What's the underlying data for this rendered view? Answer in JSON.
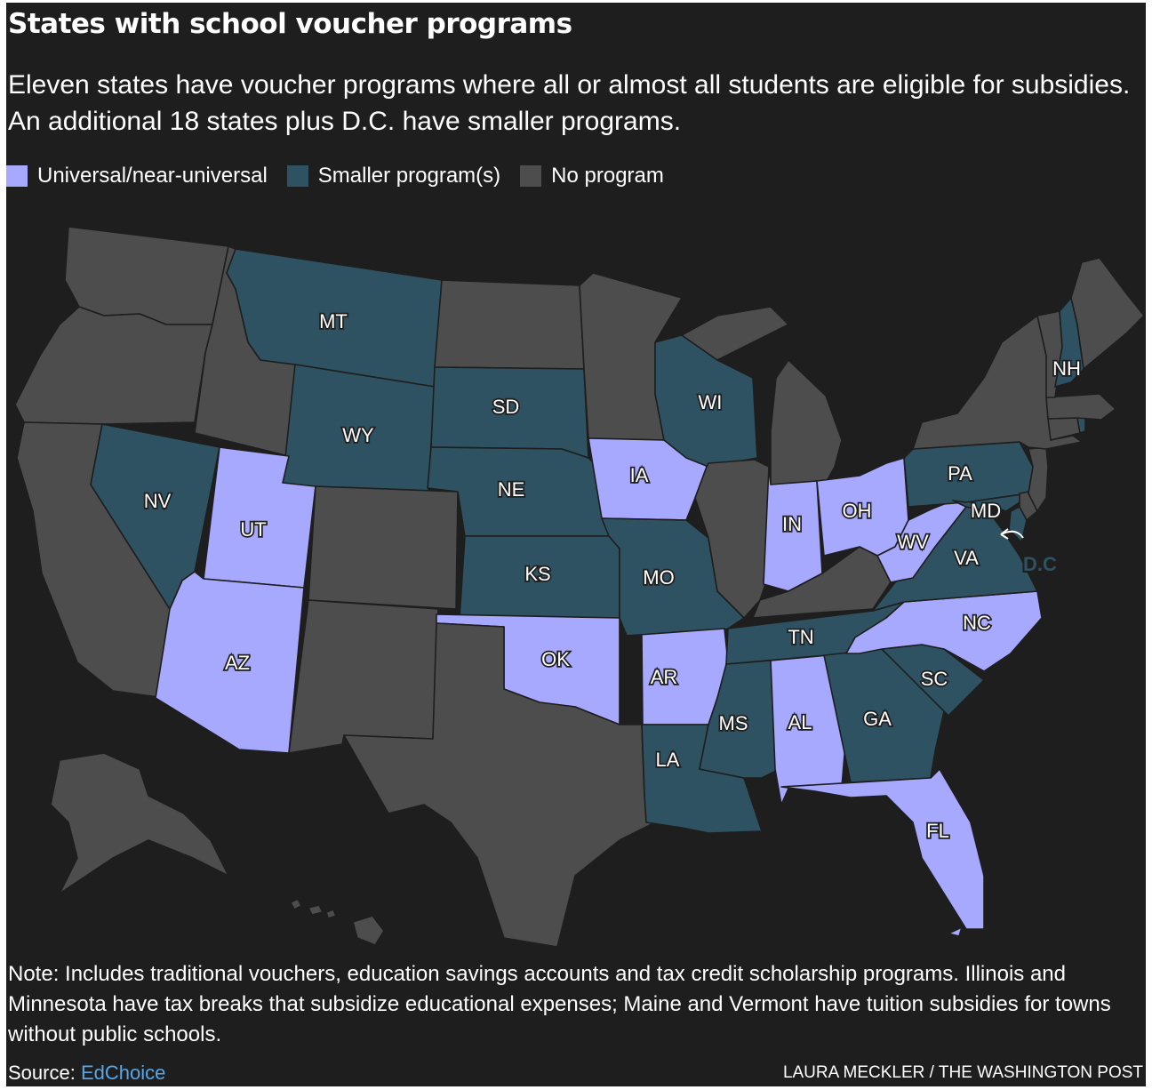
{
  "title": "States with school voucher programs",
  "subtitle": "Eleven states have voucher programs where all or almost all students are eligible for subsidies. An additional 18 states plus D.C. have smaller programs.",
  "legend": [
    {
      "label": "Universal/near-universal",
      "color": "#a7a8ff"
    },
    {
      "label": "Smaller program(s)",
      "color": "#2e5261"
    },
    {
      "label": "No program",
      "color": "#4d4d4d"
    }
  ],
  "colors": {
    "universal": "#a7a8ff",
    "smaller": "#2e5261",
    "none": "#4d4d4d",
    "background": "#1e1e1e",
    "link": "#57a7e8"
  },
  "map": {
    "states": [
      {
        "abbr": "WA",
        "category": "none",
        "show_label": false
      },
      {
        "abbr": "OR",
        "category": "none",
        "show_label": false
      },
      {
        "abbr": "CA",
        "category": "none",
        "show_label": false
      },
      {
        "abbr": "ID",
        "category": "none",
        "show_label": false
      },
      {
        "abbr": "NV",
        "category": "smaller",
        "show_label": true
      },
      {
        "abbr": "MT",
        "category": "smaller",
        "show_label": true
      },
      {
        "abbr": "WY",
        "category": "smaller",
        "show_label": true
      },
      {
        "abbr": "UT",
        "category": "universal",
        "show_label": true
      },
      {
        "abbr": "AZ",
        "category": "universal",
        "show_label": true
      },
      {
        "abbr": "CO",
        "category": "none",
        "show_label": false
      },
      {
        "abbr": "NM",
        "category": "none",
        "show_label": false
      },
      {
        "abbr": "ND",
        "category": "none",
        "show_label": false
      },
      {
        "abbr": "SD",
        "category": "smaller",
        "show_label": true
      },
      {
        "abbr": "NE",
        "category": "smaller",
        "show_label": true
      },
      {
        "abbr": "KS",
        "category": "smaller",
        "show_label": true
      },
      {
        "abbr": "OK",
        "category": "universal",
        "show_label": true
      },
      {
        "abbr": "TX",
        "category": "none",
        "show_label": false
      },
      {
        "abbr": "MN",
        "category": "none",
        "show_label": false
      },
      {
        "abbr": "IA",
        "category": "universal",
        "show_label": true
      },
      {
        "abbr": "MO",
        "category": "smaller",
        "show_label": true
      },
      {
        "abbr": "AR",
        "category": "universal",
        "show_label": true
      },
      {
        "abbr": "LA",
        "category": "smaller",
        "show_label": true
      },
      {
        "abbr": "WI",
        "category": "smaller",
        "show_label": true
      },
      {
        "abbr": "IL",
        "category": "none",
        "show_label": false
      },
      {
        "abbr": "MI",
        "category": "none",
        "show_label": false
      },
      {
        "abbr": "IN",
        "category": "universal",
        "show_label": true
      },
      {
        "abbr": "OH",
        "category": "universal",
        "show_label": true
      },
      {
        "abbr": "KY",
        "category": "none",
        "show_label": false
      },
      {
        "abbr": "TN",
        "category": "smaller",
        "show_label": true
      },
      {
        "abbr": "MS",
        "category": "smaller",
        "show_label": true
      },
      {
        "abbr": "AL",
        "category": "universal",
        "show_label": true
      },
      {
        "abbr": "GA",
        "category": "smaller",
        "show_label": true
      },
      {
        "abbr": "FL",
        "category": "universal",
        "show_label": true
      },
      {
        "abbr": "SC",
        "category": "smaller",
        "show_label": true
      },
      {
        "abbr": "NC",
        "category": "universal",
        "show_label": true
      },
      {
        "abbr": "VA",
        "category": "smaller",
        "show_label": true
      },
      {
        "abbr": "WV",
        "category": "universal",
        "show_label": true
      },
      {
        "abbr": "PA",
        "category": "smaller",
        "show_label": true
      },
      {
        "abbr": "MD",
        "category": "smaller",
        "show_label": true
      },
      {
        "abbr": "DE",
        "category": "none",
        "show_label": false
      },
      {
        "abbr": "NJ",
        "category": "none",
        "show_label": false
      },
      {
        "abbr": "NY",
        "category": "none",
        "show_label": false
      },
      {
        "abbr": "CT",
        "category": "none",
        "show_label": false
      },
      {
        "abbr": "RI",
        "category": "smaller",
        "show_label": false
      },
      {
        "abbr": "MA",
        "category": "none",
        "show_label": false
      },
      {
        "abbr": "VT",
        "category": "none",
        "show_label": false
      },
      {
        "abbr": "NH",
        "category": "smaller",
        "show_label": true
      },
      {
        "abbr": "ME",
        "category": "none",
        "show_label": false
      },
      {
        "abbr": "AK",
        "category": "none",
        "show_label": false
      },
      {
        "abbr": "HI",
        "category": "none",
        "show_label": false
      }
    ],
    "dc_label": "D.C"
  },
  "note": "Note: Includes traditional vouchers, education savings accounts and tax credit scholarship programs. Illinois and Minnesota have tax breaks that subsidize educational expenses; Maine and Vermont have tuition subsidies for towns without public schools.",
  "source": {
    "prefix": "Source: ",
    "link_text": "EdChoice"
  },
  "credit": "LAURA MECKLER / THE WASHINGTON POST"
}
